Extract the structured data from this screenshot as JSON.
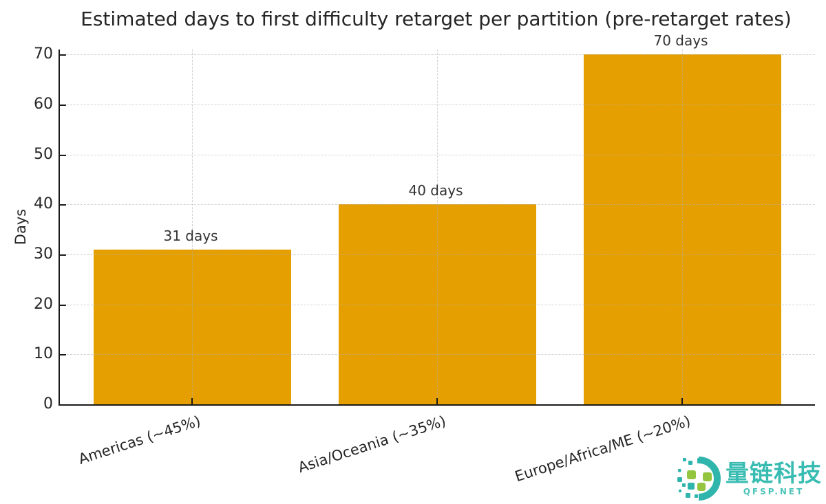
{
  "chart_data": {
    "type": "bar",
    "title": "Estimated days to first difficulty retarget per partition (pre-retarget rates)",
    "categories": [
      "Americas (~45%)",
      "Asia/Oceania (~35%)",
      "Europe/Africa/ME (~20%)"
    ],
    "values": [
      31,
      40,
      70
    ],
    "bar_labels": [
      "31 days",
      "40 days",
      "70 days"
    ],
    "xlabel": "",
    "ylabel": "Days",
    "yticks": [
      0,
      10,
      20,
      30,
      40,
      50,
      60,
      70
    ],
    "ylim": [
      0,
      71
    ],
    "grid": "dashed, both axes",
    "legend": "none",
    "bar_color": "#E69F00"
  },
  "colors": {
    "bar": "#E69F00",
    "text": "#262626",
    "axis": "#1a1a1a",
    "grid": "#afafaf",
    "watermark_teal": "#2FB5AC",
    "watermark_green": "#94C53F"
  },
  "watermark": {
    "brand": "量链科技",
    "site": "QFSP.NET"
  }
}
